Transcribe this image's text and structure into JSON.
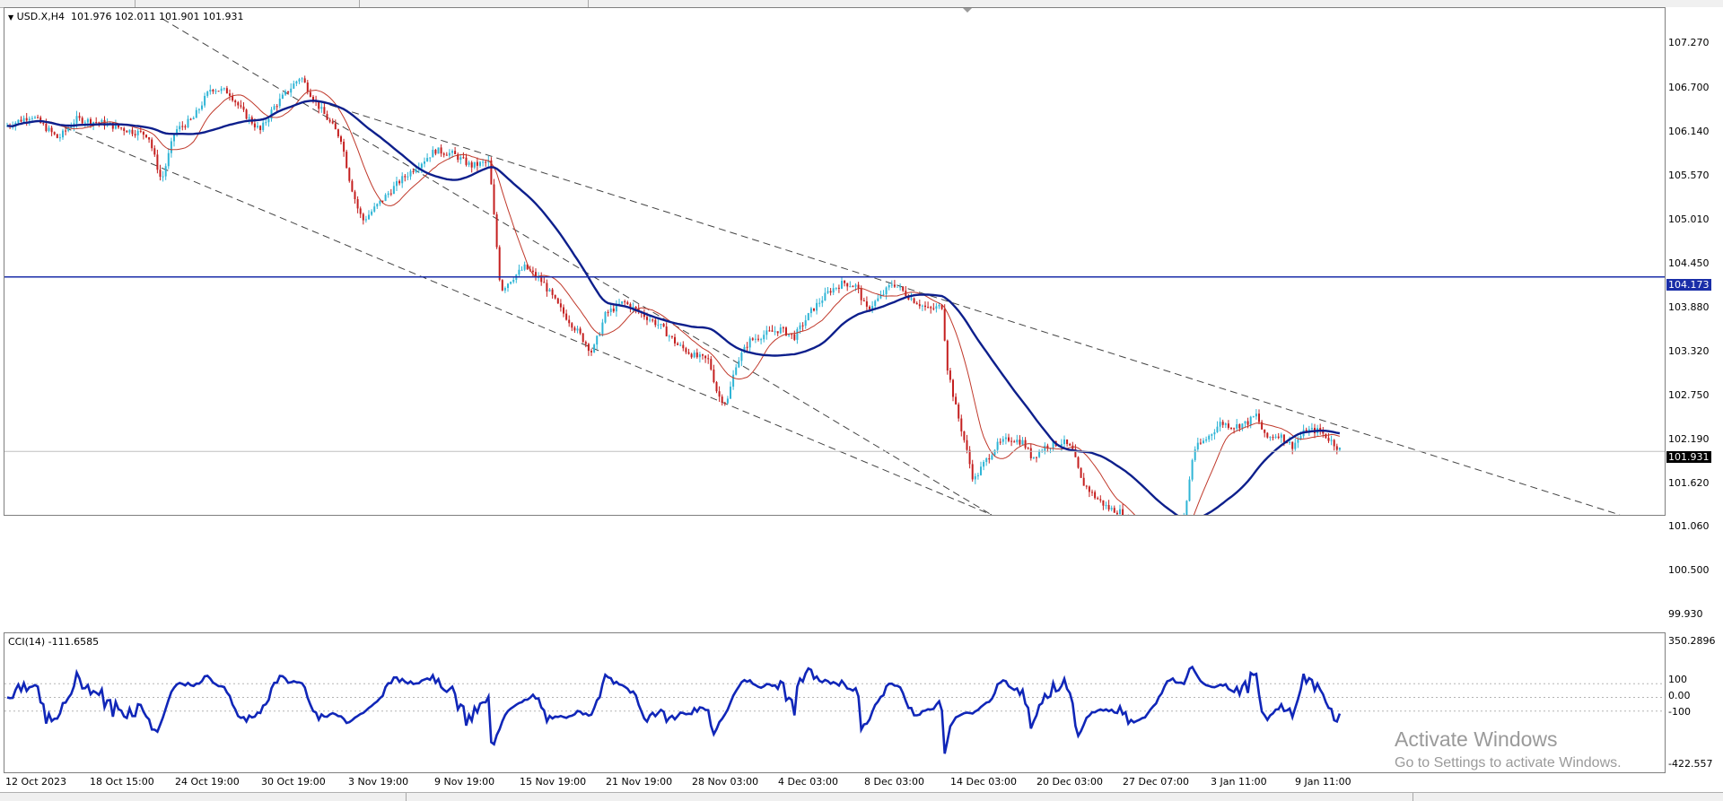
{
  "symbol_header": {
    "symbol": "USD.X,H4",
    "open": "101.976",
    "high": "102.011",
    "low": "101.901",
    "close": "101.931"
  },
  "price_scale": {
    "labels": [
      "107.270",
      "106.700",
      "106.140",
      "105.570",
      "105.010",
      "104.450",
      "103.880",
      "103.320",
      "102.750",
      "102.190",
      "101.620",
      "101.060",
      "100.500",
      "99.930"
    ],
    "hline_price": "104.173",
    "current_price": "101.931"
  },
  "cci": {
    "label": "CCI(14) -111.6585",
    "scale_labels": [
      "350.2896",
      "100",
      "0.00",
      "-100",
      "-422.557"
    ]
  },
  "time_axis": {
    "labels": [
      "12 Oct 2023",
      "18 Oct 15:00",
      "24 Oct 19:00",
      "30 Oct 19:00",
      "3 Nov 19:00",
      "9 Nov 19:00",
      "15 Nov 19:00",
      "21 Nov 19:00",
      "28 Nov 03:00",
      "4 Dec 03:00",
      "8 Dec 03:00",
      "14 Dec 03:00",
      "20 Dec 03:00",
      "27 Dec 07:00",
      "3 Jan 11:00",
      "9 Jan 11:00"
    ]
  },
  "colors": {
    "bull": "#2fb5d6",
    "bear": "#c41f1f",
    "ma_fast": "#c0392b",
    "ma_slow": "#0d1f8c",
    "hline": "#1a2ea8",
    "cci": "#1026b8"
  },
  "watermark": {
    "title": "Activate Windows",
    "subtitle": "Go to Settings to activate Windows."
  }
}
